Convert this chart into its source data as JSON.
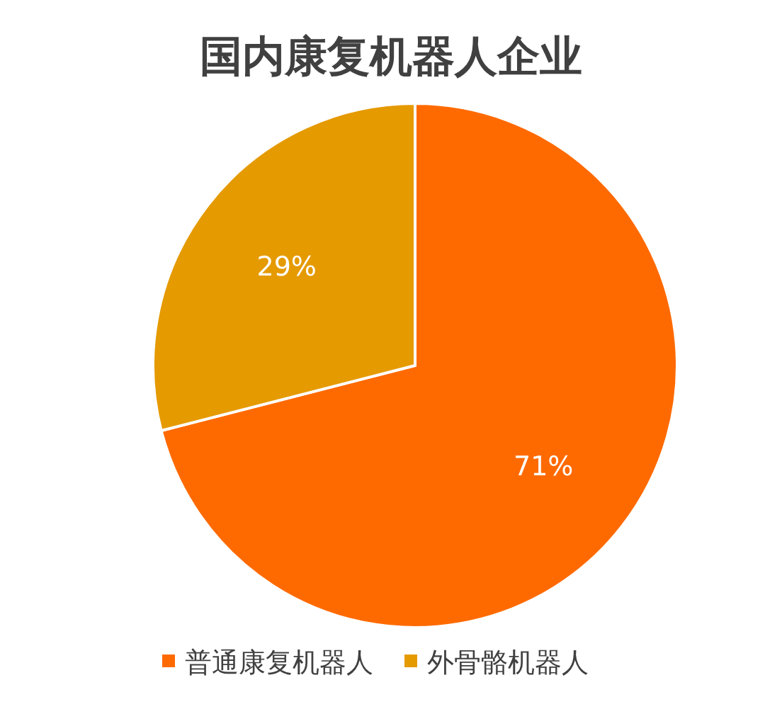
{
  "chart_data": {
    "type": "pie",
    "title": "国内康复机器人企业",
    "categories": [
      "普通康复机器人",
      "外骨骼机器人"
    ],
    "values": [
      71,
      29
    ],
    "value_labels": [
      "71%",
      "29%"
    ],
    "colors": [
      "#ff6a00",
      "#e59a00"
    ],
    "legend": "bottom"
  }
}
